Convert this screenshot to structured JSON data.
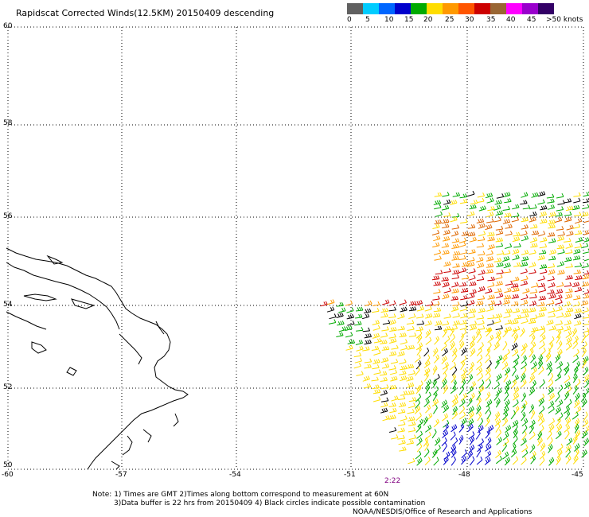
{
  "title": "Rapidscat Corrected Winds(12.5KM) 20150409 descending",
  "colorbar": {
    "colors": [
      "#606060",
      "#00ccff",
      "#0066ff",
      "#0000cc",
      "#00aa00",
      "#ffdd00",
      "#ff9900",
      "#ff5500",
      "#cc0000",
      "#996633",
      "#ff00ff",
      "#9900cc",
      "#330066"
    ],
    "labels": [
      "0",
      "5",
      "10",
      "15",
      "20",
      "25",
      "30",
      "35",
      "40",
      "45",
      ">50 knots"
    ]
  },
  "map": {
    "lat_labels": [
      "60",
      "58",
      "56",
      "54",
      "52",
      "50"
    ],
    "lon_labels": [
      "-60",
      "-57",
      "-54",
      "-51",
      "-48",
      "-45"
    ],
    "lon_range": [
      -60,
      -45
    ],
    "lat_range": [
      50,
      60
    ],
    "time_label": "2:22"
  },
  "notes": {
    "line1": "Note: 1) Times are GMT 2)Times along bottom correspond to measurement at 60N",
    "line2": "3)Data buffer is 22 hrs from 20150409 4) Black circles indicate possible contamination",
    "credit": "NOAA/NESDIS/Office of Research and Applications"
  }
}
